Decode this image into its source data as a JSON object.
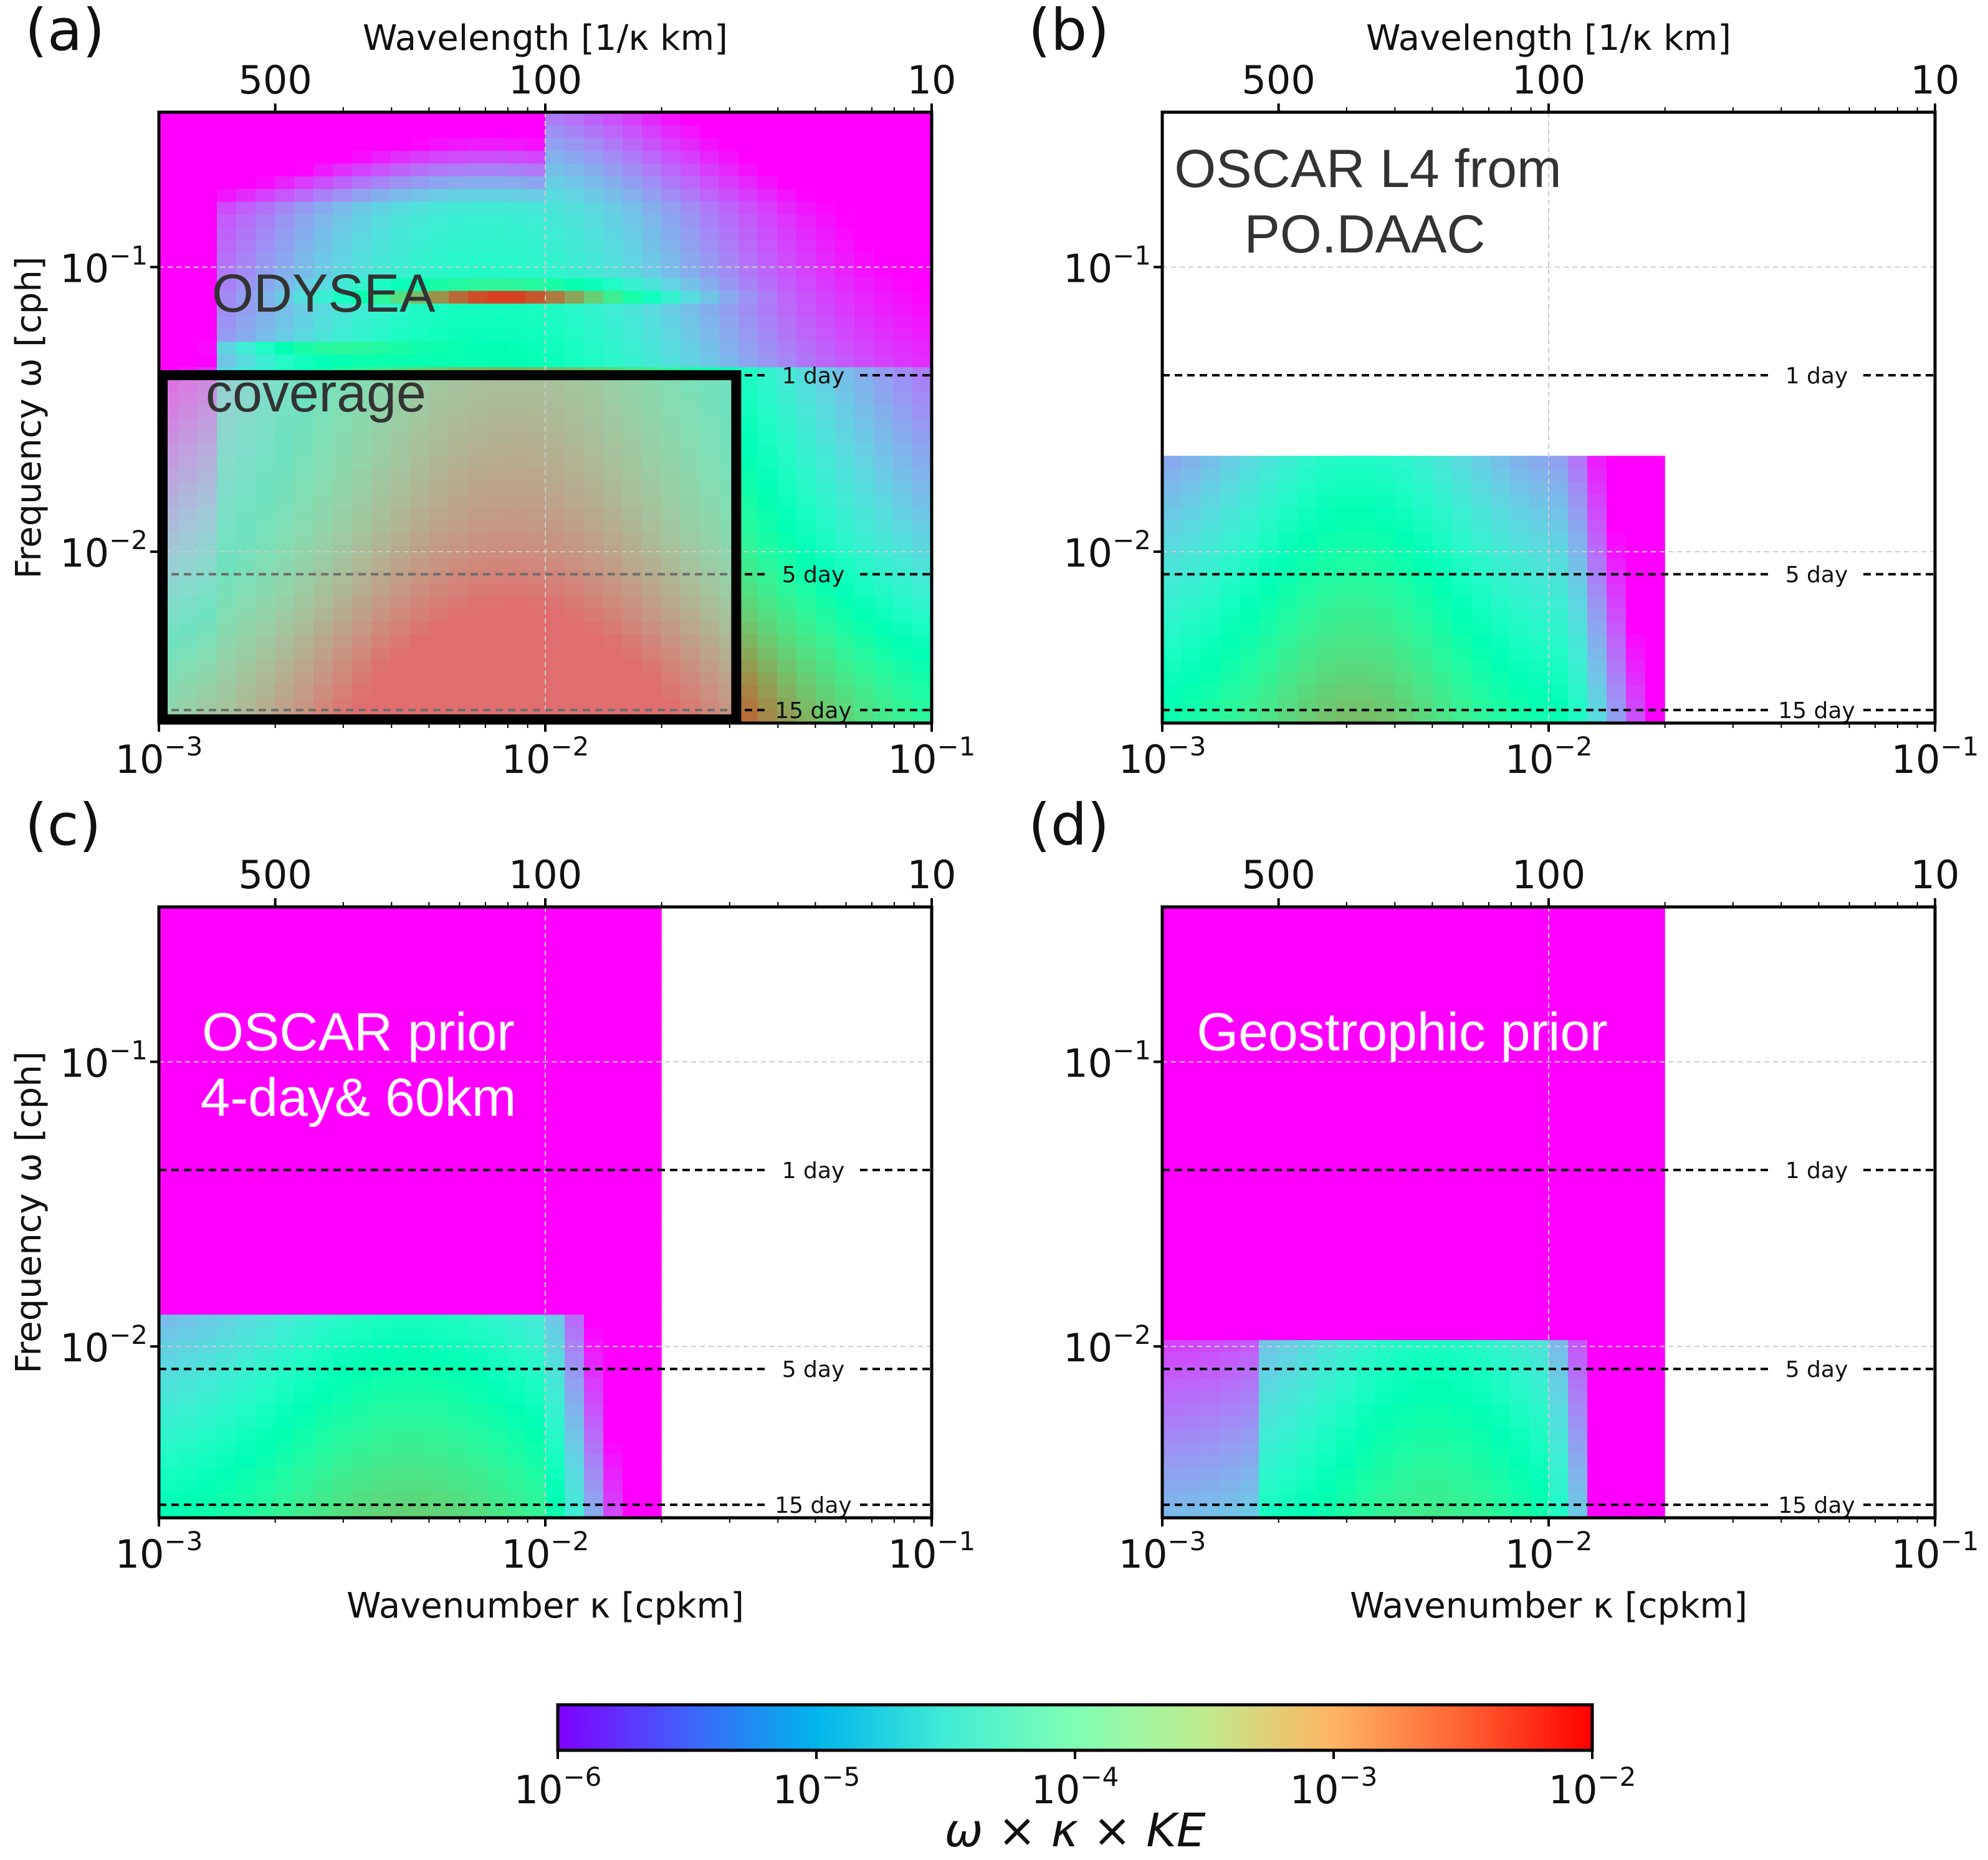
{
  "chart_data": [
    {
      "type": "heatmap",
      "panel_label": "(a)",
      "top_axis_title": "Wavelength [1/κ km]",
      "top_ticks": [
        "500",
        "100",
        "10"
      ],
      "top_tick_values_km": [
        500,
        100,
        10
      ],
      "xticks": [
        {
          "b": "10",
          "e": "−3"
        },
        {
          "b": "10",
          "e": "−2"
        },
        {
          "b": "10",
          "e": "−1"
        }
      ],
      "xtick_values": [
        0.001,
        0.01,
        0.1
      ],
      "xlabel": "",
      "ylabel": "Frequency ω [cph]",
      "yticks": [
        {
          "b": "10",
          "e": "−1"
        },
        {
          "b": "10",
          "e": "−2"
        }
      ],
      "ytick_values": [
        0.1,
        0.01
      ],
      "xlim": [
        0.001,
        0.1
      ],
      "ylim": [
        0.0025,
        0.35
      ],
      "ref_lines": [
        {
          "label": "1 day",
          "period_hours": 24
        },
        {
          "label": "5 day",
          "period_hours": 120
        },
        {
          "label": "15 day",
          "period_hours": 360
        }
      ],
      "annotation": [
        "ODYSEA",
        "coverage"
      ],
      "coverage_box": {
        "kappa_max": 0.0312,
        "omega_max": 0.0417
      },
      "grid": true,
      "description_values": "log10 of ω×κ×KE"
    },
    {
      "type": "heatmap",
      "panel_label": "(b)",
      "top_axis_title": "Wavelength [1/κ km]",
      "top_ticks": [
        "500",
        "100",
        "10"
      ],
      "top_tick_values_km": [
        500,
        100,
        10
      ],
      "xticks": [
        {
          "b": "10",
          "e": "−3"
        },
        {
          "b": "10",
          "e": "−2"
        },
        {
          "b": "10",
          "e": "−1"
        }
      ],
      "xtick_values": [
        0.001,
        0.01,
        0.1
      ],
      "xlabel": "",
      "ylabel": "",
      "yticks": [
        {
          "b": "10",
          "e": "−1"
        },
        {
          "b": "10",
          "e": "−2"
        }
      ],
      "ytick_values": [
        0.1,
        0.01
      ],
      "xlim": [
        0.001,
        0.1
      ],
      "ylim": [
        0.0025,
        0.35
      ],
      "ref_lines": [
        {
          "label": "1 day",
          "period_hours": 24
        },
        {
          "label": "5 day",
          "period_hours": 120
        },
        {
          "label": "15 day",
          "period_hours": 360
        }
      ],
      "annotation": [
        "OSCAR L4 from",
        "PO.DAAC"
      ],
      "data_extent": {
        "kappa_max": 0.02,
        "omega_max": 0.0208
      },
      "grid": true
    },
    {
      "type": "heatmap",
      "panel_label": "(c)",
      "top_axis_title": "",
      "top_ticks": [
        "500",
        "100",
        "10"
      ],
      "top_tick_values_km": [
        500,
        100,
        10
      ],
      "xticks": [
        {
          "b": "10",
          "e": "−3"
        },
        {
          "b": "10",
          "e": "−2"
        },
        {
          "b": "10",
          "e": "−1"
        }
      ],
      "xtick_values": [
        0.001,
        0.01,
        0.1
      ],
      "xlabel": "Wavenumber κ [cpkm]",
      "ylabel": "Frequency ω [cph]",
      "yticks": [
        {
          "b": "10",
          "e": "−1"
        },
        {
          "b": "10",
          "e": "−2"
        }
      ],
      "ytick_values": [
        0.1,
        0.01
      ],
      "xlim": [
        0.001,
        0.1
      ],
      "ylim": [
        0.0025,
        0.35
      ],
      "ref_lines": [
        {
          "label": "1 day",
          "period_hours": 24
        },
        {
          "label": "5 day",
          "period_hours": 120
        },
        {
          "label": "15 day",
          "period_hours": 360
        }
      ],
      "annotation": [
        "OSCAR prior",
        "4-day& 60km"
      ],
      "data_extent": {
        "kappa_max": 0.02,
        "omega_max": 0.35
      },
      "grid": true
    },
    {
      "type": "heatmap",
      "panel_label": "(d)",
      "top_axis_title": "",
      "top_ticks": [
        "500",
        "100",
        "10"
      ],
      "top_tick_values_km": [
        500,
        100,
        10
      ],
      "xticks": [
        {
          "b": "10",
          "e": "−3"
        },
        {
          "b": "10",
          "e": "−2"
        },
        {
          "b": "10",
          "e": "−1"
        }
      ],
      "xtick_values": [
        0.001,
        0.01,
        0.1
      ],
      "xlabel": "Wavenumber κ [cpkm]",
      "ylabel": "",
      "yticks": [
        {
          "b": "10",
          "e": "−1"
        },
        {
          "b": "10",
          "e": "−2"
        }
      ],
      "ytick_values": [
        0.1,
        0.01
      ],
      "xlim": [
        0.001,
        0.1
      ],
      "ylim": [
        0.0025,
        0.35
      ],
      "ref_lines": [
        {
          "label": "1 day",
          "period_hours": 24
        },
        {
          "label": "5 day",
          "period_hours": 120
        },
        {
          "label": "15 day",
          "period_hours": 360
        }
      ],
      "annotation": [
        "Geostrophic prior"
      ],
      "data_extent": {
        "kappa_max": 0.02,
        "omega_max": 0.35
      },
      "grid": true
    }
  ],
  "colorbar": {
    "ticks": [
      {
        "b": "10",
        "e": "−6"
      },
      {
        "b": "10",
        "e": "−5"
      },
      {
        "b": "10",
        "e": "−4"
      },
      {
        "b": "10",
        "e": "−3"
      },
      {
        "b": "10",
        "e": "−2"
      }
    ],
    "tick_values": [
      1e-06,
      1e-05,
      0.0001,
      0.001,
      0.01
    ],
    "range": [
      1e-06,
      0.01
    ],
    "label": "ω × κ × KE",
    "colormap": "rainbow",
    "scale": "log"
  }
}
